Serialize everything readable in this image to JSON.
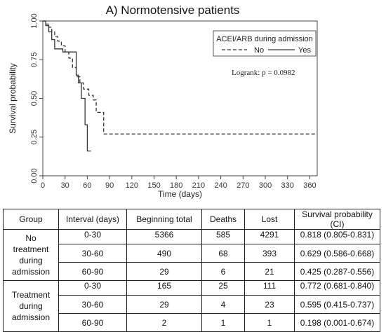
{
  "chart_data": {
    "type": "line",
    "title": "A) Normotensive patients",
    "xlabel": "Time (days)",
    "ylabel": "Survival probability",
    "xlim": [
      0,
      370
    ],
    "ylim": [
      0,
      1
    ],
    "x_ticks": [
      0,
      30,
      60,
      90,
      120,
      150,
      180,
      210,
      240,
      270,
      300,
      330,
      360
    ],
    "y_ticks": [
      0,
      0.25,
      0.5,
      0.75,
      1
    ],
    "y_tick_labels": [
      "0.00",
      "0.25",
      "0.50",
      "0.75",
      "1.00"
    ],
    "legend_title": "ACEI/ARB during admission",
    "legend_position": "top-right",
    "annotation": "Logrank: p = 0.0982",
    "series": [
      {
        "name": "No",
        "style": "dashed",
        "points": [
          [
            0,
            1.0
          ],
          [
            4,
            1.0
          ],
          [
            4,
            0.98
          ],
          [
            8,
            0.98
          ],
          [
            8,
            0.96
          ],
          [
            12,
            0.96
          ],
          [
            12,
            0.93
          ],
          [
            16,
            0.93
          ],
          [
            16,
            0.9
          ],
          [
            20,
            0.9
          ],
          [
            20,
            0.87
          ],
          [
            25,
            0.87
          ],
          [
            25,
            0.84
          ],
          [
            30,
            0.84
          ],
          [
            30,
            0.8
          ],
          [
            35,
            0.8
          ],
          [
            35,
            0.76
          ],
          [
            40,
            0.76
          ],
          [
            40,
            0.7
          ],
          [
            45,
            0.7
          ],
          [
            45,
            0.64
          ],
          [
            50,
            0.64
          ],
          [
            50,
            0.6
          ],
          [
            55,
            0.6
          ],
          [
            55,
            0.56
          ],
          [
            62,
            0.56
          ],
          [
            62,
            0.52
          ],
          [
            68,
            0.52
          ],
          [
            68,
            0.49
          ],
          [
            72,
            0.49
          ],
          [
            72,
            0.41
          ],
          [
            82,
            0.41
          ],
          [
            82,
            0.27
          ],
          [
            370,
            0.27
          ]
        ]
      },
      {
        "name": "Yes",
        "style": "solid",
        "points": [
          [
            0,
            1.0
          ],
          [
            4,
            1.0
          ],
          [
            4,
            0.97
          ],
          [
            8,
            0.97
          ],
          [
            8,
            0.93
          ],
          [
            12,
            0.93
          ],
          [
            12,
            0.88
          ],
          [
            16,
            0.88
          ],
          [
            16,
            0.82
          ],
          [
            27,
            0.82
          ],
          [
            27,
            0.8
          ],
          [
            45,
            0.8
          ],
          [
            45,
            0.65
          ],
          [
            48,
            0.65
          ],
          [
            48,
            0.6
          ],
          [
            52,
            0.6
          ],
          [
            52,
            0.5
          ],
          [
            57,
            0.5
          ],
          [
            57,
            0.33
          ],
          [
            60,
            0.33
          ],
          [
            60,
            0.16
          ],
          [
            65,
            0.16
          ]
        ]
      }
    ]
  },
  "table": {
    "headers": [
      "Group",
      "Interval (days)",
      "Beginning total",
      "Deaths",
      "Lost",
      "Survival probability (CI)"
    ],
    "groups": [
      {
        "label_lines": [
          "No",
          "treatment",
          "during",
          "admission"
        ],
        "rows": [
          [
            "0-30",
            "5366",
            "585",
            "4291",
            "0.818 (0.805-0.831)"
          ],
          [
            "30-60",
            "490",
            "68",
            "393",
            "0.629 (0.586-0.668)"
          ],
          [
            "60-90",
            "29",
            "6",
            "21",
            "0.425 (0.287-0.556)"
          ]
        ]
      },
      {
        "label_lines": [
          "Treatment",
          "during",
          "admission"
        ],
        "rows": [
          [
            "0-30",
            "165",
            "25",
            "111",
            "0.772 (0.681-0.840)"
          ],
          [
            "30-60",
            "29",
            "4",
            "23",
            "0.595 (0.415-0.737)"
          ],
          [
            "60-90",
            "2",
            "1",
            "1",
            "0.198 (0.001-0.674)"
          ]
        ]
      }
    ]
  }
}
